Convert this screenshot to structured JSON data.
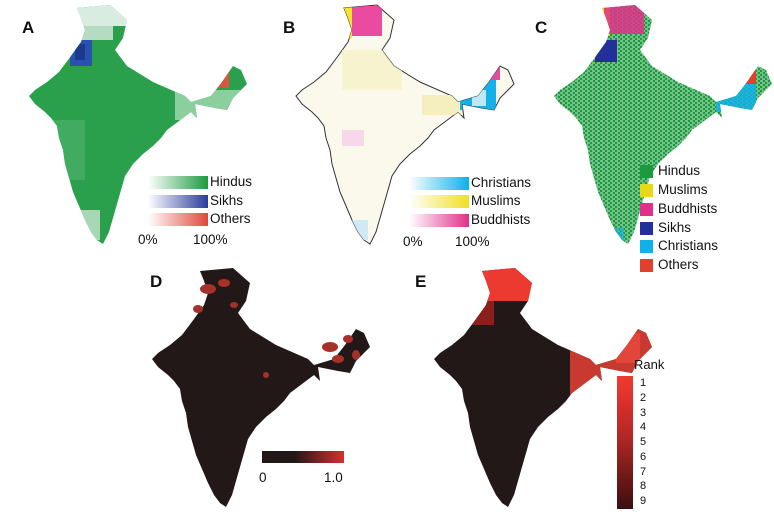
{
  "panels": {
    "a": {
      "label": "A",
      "legend": [
        {
          "name": "Hindus",
          "color": "#1c9a3f"
        },
        {
          "name": "Sikhs",
          "color": "#2a3a9a"
        },
        {
          "name": "Others",
          "color": "#e0473c"
        }
      ],
      "scale_min": "0%",
      "scale_max": "100%"
    },
    "b": {
      "label": "B",
      "legend": [
        {
          "name": "Christians",
          "color": "#10b0e8"
        },
        {
          "name": "Muslims",
          "color": "#f0e020"
        },
        {
          "name": "Buddhists",
          "color": "#e0308a"
        }
      ],
      "scale_min": "0%",
      "scale_max": "100%"
    },
    "c": {
      "label": "C",
      "categories": [
        {
          "name": "Hindus",
          "color": "#1c9a3f"
        },
        {
          "name": "Muslims",
          "color": "#e8d81c"
        },
        {
          "name": "Buddhists",
          "color": "#e0308a"
        },
        {
          "name": "Sikhs",
          "color": "#24309a"
        },
        {
          "name": "Christians",
          "color": "#10b0e8"
        },
        {
          "name": "Others",
          "color": "#e0402c"
        }
      ]
    },
    "d": {
      "label": "D",
      "scale_min": "0",
      "scale_max": "1.0",
      "low_color": "#261a1a",
      "high_color": "#d8302c"
    },
    "e": {
      "label": "E",
      "rank_title": "Rank",
      "ranks": [
        "1",
        "2",
        "3",
        "4",
        "5",
        "6",
        "7",
        "8",
        "9"
      ],
      "rank_colors": [
        "#ee3a30",
        "#e5342e",
        "#d22d2a",
        "#c02a26",
        "#a82622",
        "#8a201c",
        "#701a18",
        "#561414",
        "#3a1010"
      ]
    }
  },
  "colors": {
    "dark_fill": "#231818"
  }
}
